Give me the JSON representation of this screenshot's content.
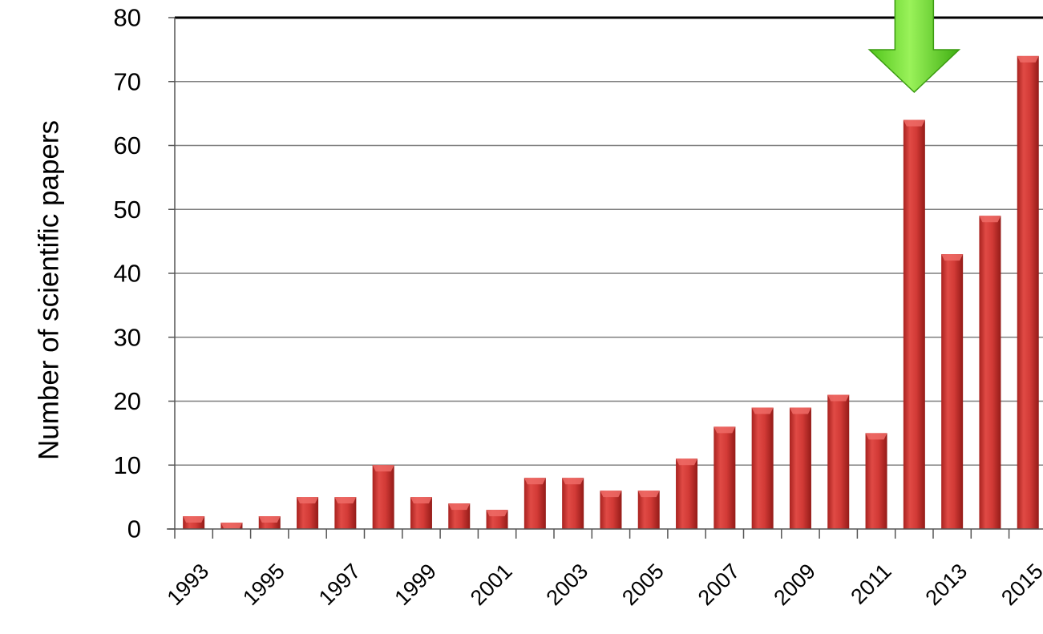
{
  "chart_data": {
    "type": "bar",
    "title": "",
    "xlabel": "",
    "ylabel": "Number of scientific papers",
    "ylim": [
      0,
      80
    ],
    "y_ticks": [
      0,
      10,
      20,
      30,
      40,
      50,
      60,
      70,
      80
    ],
    "grid": true,
    "categories": [
      "1993",
      "1994",
      "1995",
      "1996",
      "1997",
      "1998",
      "1999",
      "2000",
      "2001",
      "2002",
      "2003",
      "2004",
      "2005",
      "2006",
      "2007",
      "2008",
      "2009",
      "2010",
      "2011",
      "2012",
      "2013",
      "2014",
      "2015"
    ],
    "x_tick_labels": [
      "1993",
      "1995",
      "1997",
      "1999",
      "2001",
      "2003",
      "2005",
      "2007",
      "2009",
      "2011",
      "2013",
      "2015"
    ],
    "values": [
      2,
      1,
      2,
      5,
      5,
      10,
      5,
      4,
      3,
      8,
      8,
      6,
      6,
      11,
      16,
      19,
      19,
      21,
      15,
      64,
      43,
      49,
      74
    ],
    "annotation": {
      "type": "arrow",
      "icon": "down-arrow-icon",
      "points_to": "2012",
      "color": "#66dd22"
    },
    "colors": {
      "bar": "#d23a36",
      "bar_dark": "#9e1f1c",
      "bar_light": "#ee6b66",
      "grid": "#7f7f7f",
      "arrow": "#66dd22"
    }
  }
}
